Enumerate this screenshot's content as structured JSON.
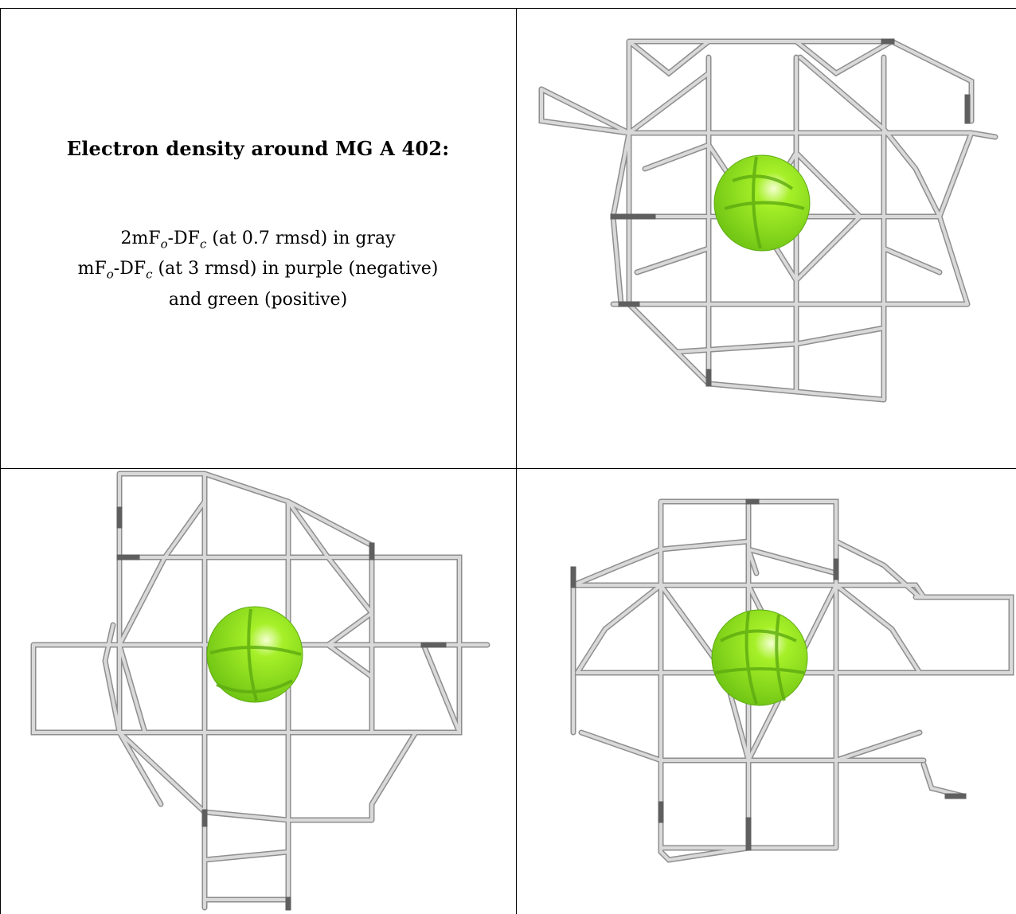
{
  "caption": {
    "title": "Electron density around MG A 402:",
    "line1_prefix": "2mF",
    "line1_sub_o": "o",
    "line1_mid": "-DF",
    "line1_sub_c": "c",
    "line1_suffix": " (at 0.7 rmsd) in gray",
    "line2_prefix": "mF",
    "line2_sub_o": "o",
    "line2_mid": "-DF",
    "line2_sub_c": "c",
    "line2_suffix": " (at 3 rmsd) in purple (negative)",
    "line3": "and green (positive)"
  },
  "colors": {
    "mesh_gray": "#d9d9d9",
    "mesh_dark": "#5f5f5f",
    "sphere_green": "#8fe01c",
    "sphere_dark": "#5caa10",
    "border": "#000000"
  },
  "icons": {
    "atom": "magnesium-sphere-icon",
    "mesh": "electron-density-mesh-icon"
  }
}
